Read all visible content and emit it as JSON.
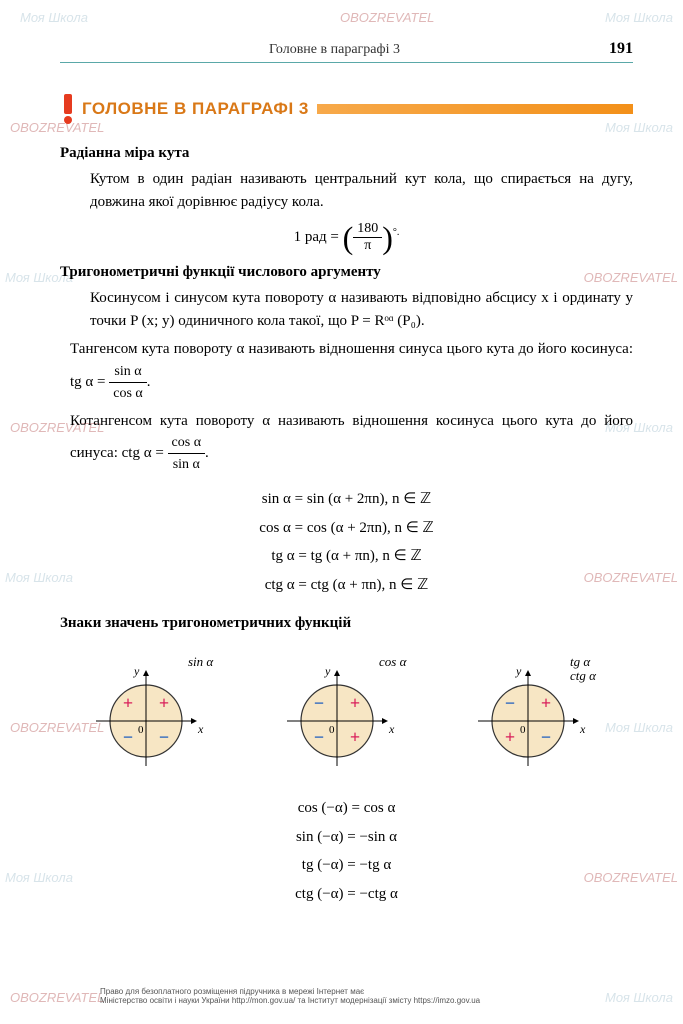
{
  "header": {
    "running_title": "Головне в параграфі 3",
    "page_number": "191"
  },
  "section": {
    "title": "ГОЛОВНЕ В ПАРАГРАФІ 3",
    "title_color": "#d97817",
    "rule_color_start": "#f7a94a",
    "rule_color_end": "#f39019",
    "bang_color": "#e63b1f"
  },
  "block1": {
    "heading": "Радіанна міра кута",
    "text": "Кутом в один радіан називають центральний кут кола, що спирається на дугу, довжина якої дорівнює радіусу кола.",
    "formula_prefix": "1 рад =",
    "formula_num": "180",
    "formula_den": "π",
    "formula_suffix": "°."
  },
  "block2": {
    "heading": "Тригонометричні функції числового аргументу",
    "p1": "Косинусом і синусом кута повороту α називають відповідно абсцису x і ординату y точки P (x; y) одиничного кола такої, що P = Rᵒᵅ (P₀).",
    "p2_a": "Тангенсом кута повороту α називають відношення синуса цього кута до його косинуса:  tg α =",
    "p2_num": "sin α",
    "p2_den": "cos α",
    "p3_a": "Котангенсом кута повороту α називають відношення косинуса цього кута до його синуса:  ctg α =",
    "p3_num": "cos α",
    "p3_den": "sin α",
    "identities": [
      "sin  α = sin  (α + 2πn),   n ∈ ℤ",
      "cos  α = cos  (α + 2πn),   n ∈ ℤ",
      "tg  α = tg (α + πn),   n ∈ ℤ",
      "ctg  α = ctg (α + πn),   n ∈ ℤ"
    ]
  },
  "block3": {
    "heading": "Знаки значень тригонометричних функцій",
    "charts": [
      {
        "label": "sin α",
        "quadrants": [
          "+",
          "+",
          "−",
          "−"
        ],
        "pos_color": "#d81f5a",
        "neg_color": "#1f5fbf"
      },
      {
        "label": "cos α",
        "quadrants": [
          "−",
          "+",
          "−",
          "+"
        ],
        "pos_color": "#d81f5a",
        "neg_color": "#1f5fbf"
      },
      {
        "label": "tg α\nctg α",
        "quadrants": [
          "−",
          "+",
          "+",
          "−"
        ],
        "pos_color": "#d81f5a",
        "neg_color": "#1f5fbf"
      }
    ],
    "axis_labels": {
      "x": "x",
      "y": "y",
      "origin": "0"
    },
    "circle_color": "#333333",
    "circle_fill": "#f7e6c4",
    "axis_color": "#000000",
    "neg_identities": [
      "cos  (−α) = cos  α",
      "sin  (−α) = −sin  α",
      "tg  (−α) = −tg  α",
      "ctg  (−α) = −ctg  α"
    ]
  },
  "footer": {
    "line1": "Право для безоплатного розміщення підручника в мережі Інтернет має",
    "line2": "Міністерство освіти і науки України http://mon.gov.ua/ та Інститут модернізації змісту https://imzo.gov.ua"
  },
  "watermarks": {
    "text1": "Моя Школа",
    "text2": "OBOZREVATEL",
    "color1": "#d8e4ea",
    "color2": "#e0b8b8"
  }
}
